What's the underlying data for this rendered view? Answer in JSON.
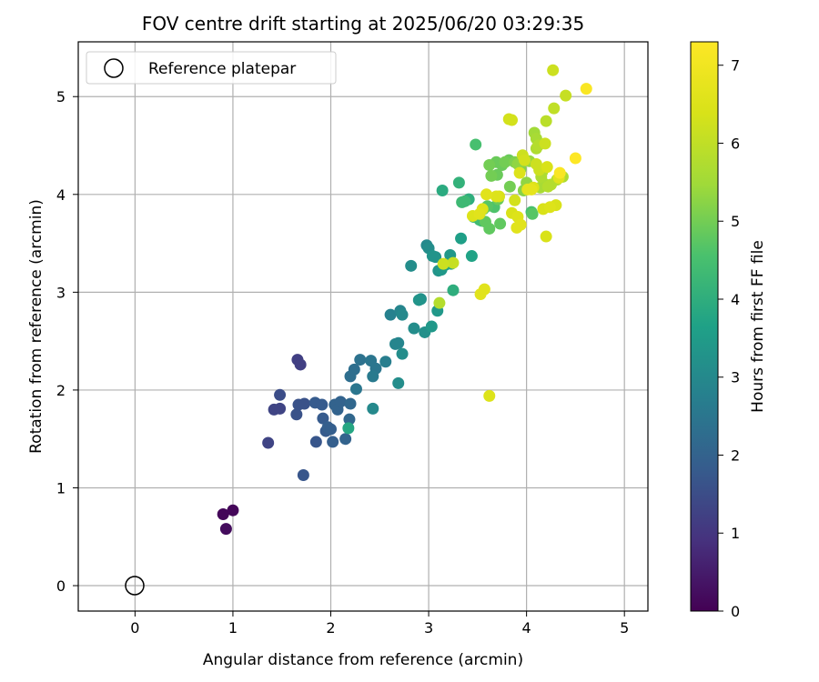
{
  "chart_data": {
    "type": "scatter",
    "title": "FOV centre drift starting at 2025/06/20 03:29:35",
    "xlabel": "Angular distance from reference (arcmin)",
    "ylabel": "Rotation from reference (arcmin)",
    "xlim": [
      -0.58,
      5.24
    ],
    "ylim": [
      -0.26,
      5.56
    ],
    "xticks": [
      0,
      1,
      2,
      3,
      4,
      5
    ],
    "yticks": [
      0,
      1,
      2,
      3,
      4,
      5
    ],
    "grid": true,
    "legend": {
      "position": "top-left",
      "entries": [
        "Reference platepar"
      ]
    },
    "colorbar": {
      "label": "Hours from first FF file",
      "min": 0,
      "max": 7.3,
      "ticks": [
        0,
        1,
        2,
        3,
        4,
        5,
        6,
        7
      ],
      "colormap": "viridis"
    },
    "reference_point": {
      "x": 0,
      "y": 0,
      "label": "Reference platepar"
    },
    "series": [
      {
        "name": "FOV centre drift",
        "points": [
          [
            0.9,
            0.73,
            0.1
          ],
          [
            1.0,
            0.77,
            0.1
          ],
          [
            0.93,
            0.58,
            0.2
          ],
          [
            1.36,
            1.46,
            1.3
          ],
          [
            1.42,
            1.8,
            1.3
          ],
          [
            1.48,
            1.81,
            1.3
          ],
          [
            1.48,
            1.95,
            1.5
          ],
          [
            1.65,
            1.75,
            1.6
          ],
          [
            1.67,
            1.85,
            1.6
          ],
          [
            1.66,
            2.31,
            1.2
          ],
          [
            1.69,
            2.26,
            1.2
          ],
          [
            1.73,
            1.86,
            1.6
          ],
          [
            1.72,
            1.13,
            1.7
          ],
          [
            1.84,
            1.87,
            1.8
          ],
          [
            1.85,
            1.47,
            1.7
          ],
          [
            1.91,
            1.85,
            1.8
          ],
          [
            1.92,
            1.71,
            1.8
          ],
          [
            1.95,
            1.58,
            1.8
          ],
          [
            1.97,
            1.62,
            1.9
          ],
          [
            2.0,
            1.6,
            1.9
          ],
          [
            2.02,
            1.47,
            1.9
          ],
          [
            2.04,
            1.85,
            2.0
          ],
          [
            2.07,
            1.8,
            2.0
          ],
          [
            2.1,
            1.88,
            2.0
          ],
          [
            2.15,
            1.5,
            2.0
          ],
          [
            2.19,
            1.7,
            2.1
          ],
          [
            2.2,
            1.86,
            2.1
          ],
          [
            2.2,
            2.14,
            2.3
          ],
          [
            2.24,
            2.21,
            2.3
          ],
          [
            2.26,
            2.01,
            2.5
          ],
          [
            2.3,
            2.31,
            2.4
          ],
          [
            2.41,
            2.3,
            2.5
          ],
          [
            2.43,
            2.14,
            2.6
          ],
          [
            2.46,
            2.22,
            2.5
          ],
          [
            2.43,
            1.81,
            3.0
          ],
          [
            2.18,
            1.61,
            3.8
          ],
          [
            2.56,
            2.29,
            2.7
          ],
          [
            2.61,
            2.77,
            2.8
          ],
          [
            2.66,
            2.47,
            2.9
          ],
          [
            2.69,
            2.48,
            2.9
          ],
          [
            2.69,
            2.07,
            3.1
          ],
          [
            2.71,
            2.81,
            2.9
          ],
          [
            2.73,
            2.77,
            3.0
          ],
          [
            2.73,
            2.37,
            3.1
          ],
          [
            2.82,
            3.27,
            3.1
          ],
          [
            2.85,
            2.63,
            3.1
          ],
          [
            2.9,
            2.92,
            3.3
          ],
          [
            2.92,
            2.93,
            3.2
          ],
          [
            2.96,
            2.59,
            3.2
          ],
          [
            2.98,
            3.48,
            3.0
          ],
          [
            3.0,
            3.45,
            3.1
          ],
          [
            3.04,
            3.37,
            3.3
          ],
          [
            3.07,
            3.36,
            3.3
          ],
          [
            3.03,
            2.65,
            3.4
          ],
          [
            3.09,
            2.81,
            3.4
          ],
          [
            3.1,
            3.22,
            3.3
          ],
          [
            3.13,
            3.23,
            3.4
          ],
          [
            3.14,
            4.04,
            3.9
          ],
          [
            3.17,
            3.28,
            3.6
          ],
          [
            3.22,
            3.38,
            3.4
          ],
          [
            3.23,
            3.29,
            3.8
          ],
          [
            3.25,
            3.02,
            4.0
          ],
          [
            3.31,
            4.12,
            4.1
          ],
          [
            3.33,
            3.55,
            3.6
          ],
          [
            3.34,
            3.92,
            4.3
          ],
          [
            3.37,
            3.93,
            4.3
          ],
          [
            3.41,
            3.95,
            4.0
          ],
          [
            3.44,
            3.37,
            3.7
          ],
          [
            3.46,
            3.77,
            4.3
          ],
          [
            3.48,
            4.51,
            4.5
          ],
          [
            3.52,
            3.74,
            4.3
          ],
          [
            3.54,
            3.73,
            4.4
          ],
          [
            3.56,
            3.85,
            4.6
          ],
          [
            3.58,
            3.72,
            4.8
          ],
          [
            3.6,
            3.88,
            4.7
          ],
          [
            3.62,
            3.65,
            4.8
          ],
          [
            3.62,
            4.3,
            5.0
          ],
          [
            3.64,
            4.19,
            5.0
          ],
          [
            3.67,
            3.87,
            4.6
          ],
          [
            3.69,
            4.33,
            4.9
          ],
          [
            3.7,
            4.2,
            4.9
          ],
          [
            3.71,
            3.95,
            4.9
          ],
          [
            3.73,
            3.7,
            4.8
          ],
          [
            3.75,
            4.3,
            4.9
          ],
          [
            3.78,
            4.33,
            5.0
          ],
          [
            3.82,
            4.35,
            4.9
          ],
          [
            3.83,
            4.08,
            5.0
          ],
          [
            3.88,
            4.33,
            5.1
          ],
          [
            3.91,
            4.31,
            5.3
          ],
          [
            3.94,
            4.26,
            5.2
          ],
          [
            3.97,
            4.04,
            5.2
          ],
          [
            4.0,
            4.12,
            5.3
          ],
          [
            4.03,
            4.34,
            5.4
          ],
          [
            4.05,
            3.82,
            4.5
          ],
          [
            4.06,
            3.8,
            4.7
          ],
          [
            4.08,
            4.63,
            5.5
          ],
          [
            4.1,
            4.57,
            5.6
          ],
          [
            4.1,
            4.47,
            5.7
          ],
          [
            4.12,
            4.5,
            5.8
          ],
          [
            4.14,
            4.07,
            5.6
          ],
          [
            4.15,
            4.18,
            5.7
          ],
          [
            4.16,
            4.23,
            5.7
          ],
          [
            4.18,
            4.11,
            5.6
          ],
          [
            4.2,
            4.75,
            5.9
          ],
          [
            4.22,
            4.08,
            5.8
          ],
          [
            4.25,
            4.1,
            5.8
          ],
          [
            4.28,
            4.88,
            6.0
          ],
          [
            4.31,
            4.15,
            5.8
          ],
          [
            4.37,
            4.18,
            5.7
          ],
          [
            4.4,
            5.01,
            6.1
          ],
          [
            4.27,
            5.27,
            6.2
          ],
          [
            3.52,
            3.8,
            6.6
          ],
          [
            3.45,
            3.78,
            6.5
          ],
          [
            3.55,
            3.85,
            6.5
          ],
          [
            3.59,
            4.0,
            6.6
          ],
          [
            3.69,
            3.98,
            6.5
          ],
          [
            3.72,
            3.98,
            6.4
          ],
          [
            3.82,
            4.77,
            6.3
          ],
          [
            3.85,
            4.76,
            6.3
          ],
          [
            3.85,
            3.81,
            6.4
          ],
          [
            3.88,
            3.94,
            6.3
          ],
          [
            3.9,
            3.66,
            6.6
          ],
          [
            3.91,
            3.77,
            6.5
          ],
          [
            3.94,
            3.69,
            6.6
          ],
          [
            3.93,
            4.22,
            6.5
          ],
          [
            3.96,
            4.4,
            6.2
          ],
          [
            3.98,
            4.35,
            6.3
          ],
          [
            4.01,
            4.05,
            6.7
          ],
          [
            4.05,
            4.05,
            6.7
          ],
          [
            4.07,
            4.07,
            6.5
          ],
          [
            4.1,
            4.31,
            6.2
          ],
          [
            4.13,
            4.25,
            6.2
          ],
          [
            4.17,
            3.85,
            6.4
          ],
          [
            4.19,
            4.52,
            6.2
          ],
          [
            4.2,
            3.57,
            6.4
          ],
          [
            4.21,
            4.28,
            6.4
          ],
          [
            4.24,
            3.87,
            6.5
          ],
          [
            4.3,
            3.89,
            6.4
          ],
          [
            4.33,
            4.17,
            6.6
          ],
          [
            4.34,
            4.22,
            7.2
          ],
          [
            4.5,
            4.37,
            7.3
          ],
          [
            4.61,
            5.08,
            7.2
          ],
          [
            3.62,
            1.94,
            6.5
          ],
          [
            3.57,
            3.03,
            6.6
          ],
          [
            3.53,
            2.98,
            6.6
          ],
          [
            3.15,
            3.29,
            6.2
          ],
          [
            3.25,
            3.3,
            6.1
          ],
          [
            3.11,
            2.89,
            5.8
          ]
        ]
      }
    ]
  }
}
